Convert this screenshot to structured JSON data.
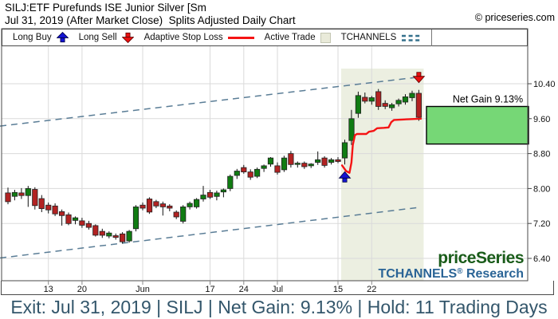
{
  "header": {
    "title": "SILJ:ETF Purefunds ISE Junior Silver [Sm",
    "subtitle": "Jul 31, 2019 (After Market Close)  Splits Adjusted Daily Chart",
    "copyright": "© priceseries.com"
  },
  "legend": {
    "long_buy": "Long Buy",
    "long_sell": "Long Sell",
    "adaptive_stop_loss": "Adaptive Stop Loss",
    "active_trade": "Active Trade",
    "tchannels": "TCHANNELS"
  },
  "branding": {
    "price_series": "priceSeries",
    "research": "TCHANNELS® Research"
  },
  "footer": {
    "summary": "Exit: Jul 31, 2019 | SILJ | Net Gain: 9.13% | Hold: 11 Trading Days"
  },
  "colors": {
    "up": "#107c12",
    "down": "#b22222",
    "candle_edge": "#222222",
    "stop": "#f51414",
    "channel": "#5a7d96",
    "region": "#ecefe1",
    "gain_box": "#76d776",
    "buy_arrow": "#1414d2",
    "sell_arrow": "#ea1010",
    "grid": "#dadada",
    "frame": "#4a4a4a",
    "tick_text": "#111111",
    "brand_green": "#1a5c1a",
    "brand_blue": "#2a6496"
  },
  "chart_data": {
    "type": "candlestick",
    "title": "SILJ Splits Adjusted Daily Chart with TCHANNELS and Adaptive Stop Loss",
    "grid": true,
    "y_axis": {
      "side": "right",
      "ticks": [
        {
          "label": "10.40",
          "value": 10.4
        },
        {
          "label": "9.60",
          "value": 9.6
        },
        {
          "label": "8.80",
          "value": 8.8
        },
        {
          "label": "8.00",
          "value": 8.0
        },
        {
          "label": "7.20",
          "value": 7.2
        },
        {
          "label": "6.40",
          "value": 6.4
        }
      ],
      "ylim": [
        5.9,
        11.25
      ]
    },
    "x_axis": {
      "ticks": [
        {
          "label": "13",
          "index": 6
        },
        {
          "label": "20",
          "index": 11
        },
        {
          "label": "Jun",
          "index": 20
        },
        {
          "label": "17",
          "index": 30
        },
        {
          "label": "24",
          "index": 35
        },
        {
          "label": "Jul",
          "index": 40
        },
        {
          "label": "15",
          "index": 49
        },
        {
          "label": "22",
          "index": 54
        }
      ]
    },
    "columns": [
      "date",
      "open",
      "high",
      "low",
      "close"
    ],
    "candles": [
      [
        "May 3",
        7.9,
        8.02,
        7.64,
        7.7
      ],
      [
        "May 6",
        7.82,
        7.97,
        7.73,
        7.91
      ],
      [
        "May 7",
        7.9,
        8.01,
        7.76,
        7.84
      ],
      [
        "May 8",
        7.84,
        8.06,
        7.58,
        8.0
      ],
      [
        "May 9",
        7.98,
        8.03,
        7.52,
        7.61
      ],
      [
        "May 10",
        7.77,
        7.85,
        7.46,
        7.54
      ],
      [
        "May 13",
        7.62,
        7.68,
        7.43,
        7.51
      ],
      [
        "May 14",
        7.6,
        7.66,
        7.37,
        7.42
      ],
      [
        "May 15",
        7.47,
        7.52,
        7.15,
        7.38
      ],
      [
        "May 16",
        7.4,
        7.45,
        7.16,
        7.2
      ],
      [
        "May 17",
        7.27,
        7.36,
        7.18,
        7.33
      ],
      [
        "May 20",
        7.26,
        7.33,
        7.1,
        7.16
      ],
      [
        "May 21",
        7.2,
        7.26,
        7.06,
        7.11
      ],
      [
        "May 22",
        7.15,
        7.18,
        6.9,
        6.93
      ],
      [
        "May 23",
        7.02,
        7.08,
        6.87,
        6.93
      ],
      [
        "May 24",
        6.91,
        7.02,
        6.86,
        6.98
      ],
      [
        "May 28",
        6.92,
        6.97,
        6.83,
        6.88
      ],
      [
        "May 29",
        6.96,
        7.0,
        6.74,
        6.78
      ],
      [
        "May 30",
        6.8,
        7.05,
        6.76,
        7.02
      ],
      [
        "May 31",
        7.08,
        7.62,
        7.02,
        7.58
      ],
      [
        "Jun 3",
        7.62,
        7.68,
        7.5,
        7.55
      ],
      [
        "Jun 4",
        7.76,
        7.8,
        7.42,
        7.46
      ],
      [
        "Jun 5",
        7.7,
        7.74,
        7.55,
        7.6
      ],
      [
        "Jun 6",
        7.65,
        7.7,
        7.38,
        7.58
      ],
      [
        "Jun 7",
        7.6,
        7.64,
        7.48,
        7.55
      ],
      [
        "Jun 10",
        7.46,
        7.5,
        7.3,
        7.35
      ],
      [
        "Jun 11",
        7.25,
        7.62,
        7.2,
        7.58
      ],
      [
        "Jun 12",
        7.58,
        7.7,
        7.52,
        7.66
      ],
      [
        "Jun 13",
        7.58,
        7.78,
        7.54,
        7.75
      ],
      [
        "Jun 14",
        7.76,
        8.06,
        7.7,
        7.85
      ],
      [
        "Jun 17",
        7.91,
        7.97,
        7.76,
        7.8
      ],
      [
        "Jun 18",
        7.82,
        7.95,
        7.73,
        7.9
      ],
      [
        "Jun 19",
        7.92,
        8.0,
        7.8,
        7.97
      ],
      [
        "Jun 20",
        8.0,
        8.32,
        7.94,
        8.28
      ],
      [
        "Jun 21",
        8.3,
        8.45,
        8.22,
        8.4
      ],
      [
        "Jun 24",
        8.48,
        8.54,
        8.34,
        8.38
      ],
      [
        "Jun 25",
        8.38,
        8.44,
        8.2,
        8.26
      ],
      [
        "Jun 26",
        8.28,
        8.48,
        8.24,
        8.44
      ],
      [
        "Jun 27",
        8.46,
        8.55,
        8.38,
        8.52
      ],
      [
        "Jun 28",
        8.56,
        8.72,
        8.5,
        8.7
      ],
      [
        "Jul 1",
        8.52,
        8.6,
        8.32,
        8.37
      ],
      [
        "Jul 2",
        8.43,
        8.75,
        8.38,
        8.7
      ],
      [
        "Jul 3",
        8.8,
        8.86,
        8.48,
        8.55
      ],
      [
        "Jul 5",
        8.55,
        8.62,
        8.48,
        8.58
      ],
      [
        "Jul 8",
        8.58,
        8.62,
        8.45,
        8.5
      ],
      [
        "Jul 9",
        8.52,
        8.58,
        8.47,
        8.56
      ],
      [
        "Jul 10",
        8.6,
        8.85,
        8.54,
        8.66
      ],
      [
        "Jul 11",
        8.7,
        8.74,
        8.48,
        8.53
      ],
      [
        "Jul 12",
        8.6,
        8.7,
        8.55,
        8.66
      ],
      [
        "Jul 15",
        8.66,
        8.72,
        8.58,
        8.62
      ],
      [
        "Jul 16",
        8.7,
        9.12,
        8.55,
        9.05
      ],
      [
        "Jul 17",
        9.1,
        9.8,
        9.0,
        9.6
      ],
      [
        "Jul 18",
        9.72,
        10.22,
        9.62,
        10.13
      ],
      [
        "Jul 19",
        10.09,
        10.2,
        9.95,
        10.0
      ],
      [
        "Jul 22",
        10.0,
        10.12,
        9.92,
        10.08
      ],
      [
        "Jul 23",
        10.22,
        10.28,
        9.8,
        9.88
      ],
      [
        "Jul 24",
        9.95,
        10.02,
        9.82,
        9.88
      ],
      [
        "Jul 25",
        9.85,
        9.96,
        9.78,
        9.92
      ],
      [
        "Jul 26",
        9.94,
        10.06,
        9.88,
        10.02
      ],
      [
        "Jul 29",
        9.98,
        10.16,
        9.92,
        10.1
      ],
      [
        "Jul 30",
        10.08,
        10.24,
        10.0,
        10.18
      ],
      [
        "Jul 31",
        10.18,
        10.26,
        9.55,
        9.63
      ]
    ],
    "channels": {
      "style": "dashed",
      "upper": {
        "from": [
          -1.18,
          9.43
        ],
        "to": [
          61.5,
          10.56
        ]
      },
      "lower": {
        "from": [
          -1.18,
          6.41
        ],
        "to": [
          61.2,
          7.57
        ]
      }
    },
    "stop_loss": {
      "name": "Adaptive Stop Loss",
      "points": [
        [
          49.6,
          8.53
        ],
        [
          50.2,
          8.4
        ],
        [
          50.7,
          8.36
        ],
        [
          51.0,
          8.6
        ],
        [
          51.2,
          9.0
        ],
        [
          51.5,
          9.22
        ],
        [
          51.8,
          9.25
        ],
        [
          53.2,
          9.25
        ],
        [
          53.6,
          9.3
        ],
        [
          54.3,
          9.32
        ],
        [
          54.8,
          9.38
        ],
        [
          55.8,
          9.39
        ],
        [
          56.5,
          9.4
        ],
        [
          56.9,
          9.52
        ],
        [
          57.3,
          9.57
        ],
        [
          58.5,
          9.58
        ],
        [
          60.0,
          9.59
        ],
        [
          61.3,
          9.6
        ]
      ]
    },
    "trade": {
      "buy_date": "Jul 16",
      "buy_index": 50,
      "sell_date": "Jul 31",
      "sell_index": 61,
      "net_gain_label": "Net Gain 9.13%",
      "gain_box": {
        "price_top": 9.88,
        "price_bottom": 9.02
      }
    }
  }
}
